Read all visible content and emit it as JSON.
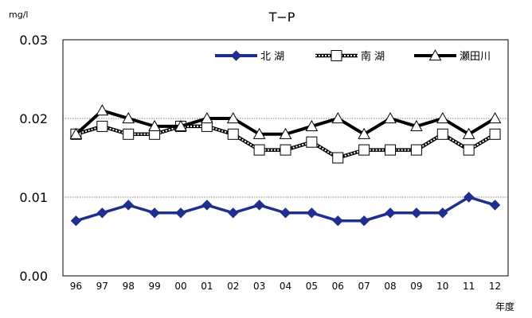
{
  "chart_data": {
    "type": "line",
    "title": "T−P",
    "yunit": "mg/l",
    "xunit": "年度",
    "categories": [
      "96",
      "97",
      "98",
      "99",
      "00",
      "01",
      "02",
      "03",
      "04",
      "05",
      "06",
      "07",
      "08",
      "09",
      "10",
      "11",
      "12"
    ],
    "ylim": [
      0,
      0.03
    ],
    "yticks": [
      "0.00",
      "0.01",
      "0.02",
      "0.03"
    ],
    "grid": true,
    "legend_position": "top-right",
    "series": [
      {
        "name": "北 湖",
        "color": "#1f2f8f",
        "marker": "diamond",
        "values": [
          0.007,
          0.008,
          0.009,
          0.008,
          0.008,
          0.009,
          0.008,
          0.009,
          0.008,
          0.008,
          0.007,
          0.007,
          0.008,
          0.008,
          0.008,
          0.01,
          0.009
        ]
      },
      {
        "name": "南 湖",
        "color": "#555555",
        "marker": "square",
        "values": [
          0.018,
          0.019,
          0.018,
          0.018,
          0.019,
          0.019,
          0.018,
          0.016,
          0.016,
          0.017,
          0.015,
          0.016,
          0.016,
          0.016,
          0.018,
          0.016,
          0.018
        ]
      },
      {
        "name": "瀬田川",
        "color": "#000000",
        "marker": "triangle",
        "values": [
          0.018,
          0.021,
          0.02,
          0.019,
          0.019,
          0.02,
          0.02,
          0.018,
          0.018,
          0.019,
          0.02,
          0.018,
          0.02,
          0.019,
          0.02,
          0.018,
          0.02
        ]
      }
    ]
  }
}
